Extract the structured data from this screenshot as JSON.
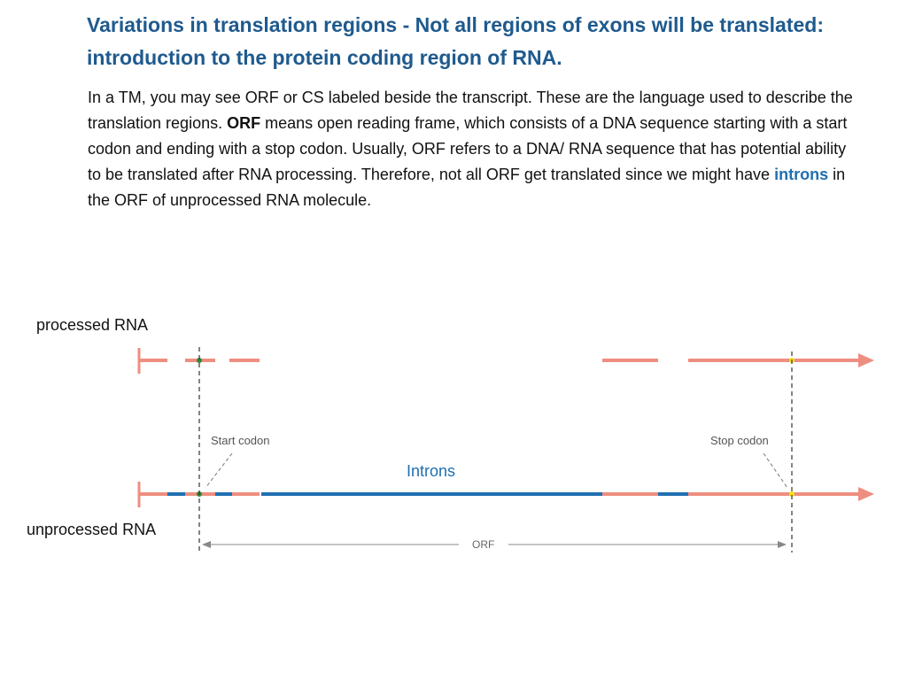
{
  "title_line1": "Variations in translation regions - Not all regions of exons will be translated:",
  "title_line2": "introduction to the protein coding region of RNA.",
  "paragraph": {
    "part1": "In a TM, you may see ORF or CS labeled beside the transcript. These are the language used to describe the translation regions. ",
    "orf_bold": "ORF",
    "part2": " means open reading frame, which consists of a DNA sequence starting with a start codon and ending with a stop codon. Usually, ORF refers to a DNA/ RNA sequence that has potential ability to be translated after RNA processing. Therefore, not all ORF get translated since we might have ",
    "introns_word": "introns",
    "part3": " in the ORF of unprocessed RNA molecule."
  },
  "diagram": {
    "processed_label": "processed RNA",
    "unprocessed_label": "unprocessed RNA",
    "start_codon_label": "Start codon",
    "stop_codon_label": "Stop codon",
    "introns_label": "Introns",
    "orf_label": "ORF",
    "colors": {
      "exon": "#ee8e80",
      "intron": "#1f6fb0",
      "start_codon": "#2e8b3a",
      "stop_codon": "#f4e21a",
      "guide": "#333333",
      "annotation": "#777777"
    }
  }
}
